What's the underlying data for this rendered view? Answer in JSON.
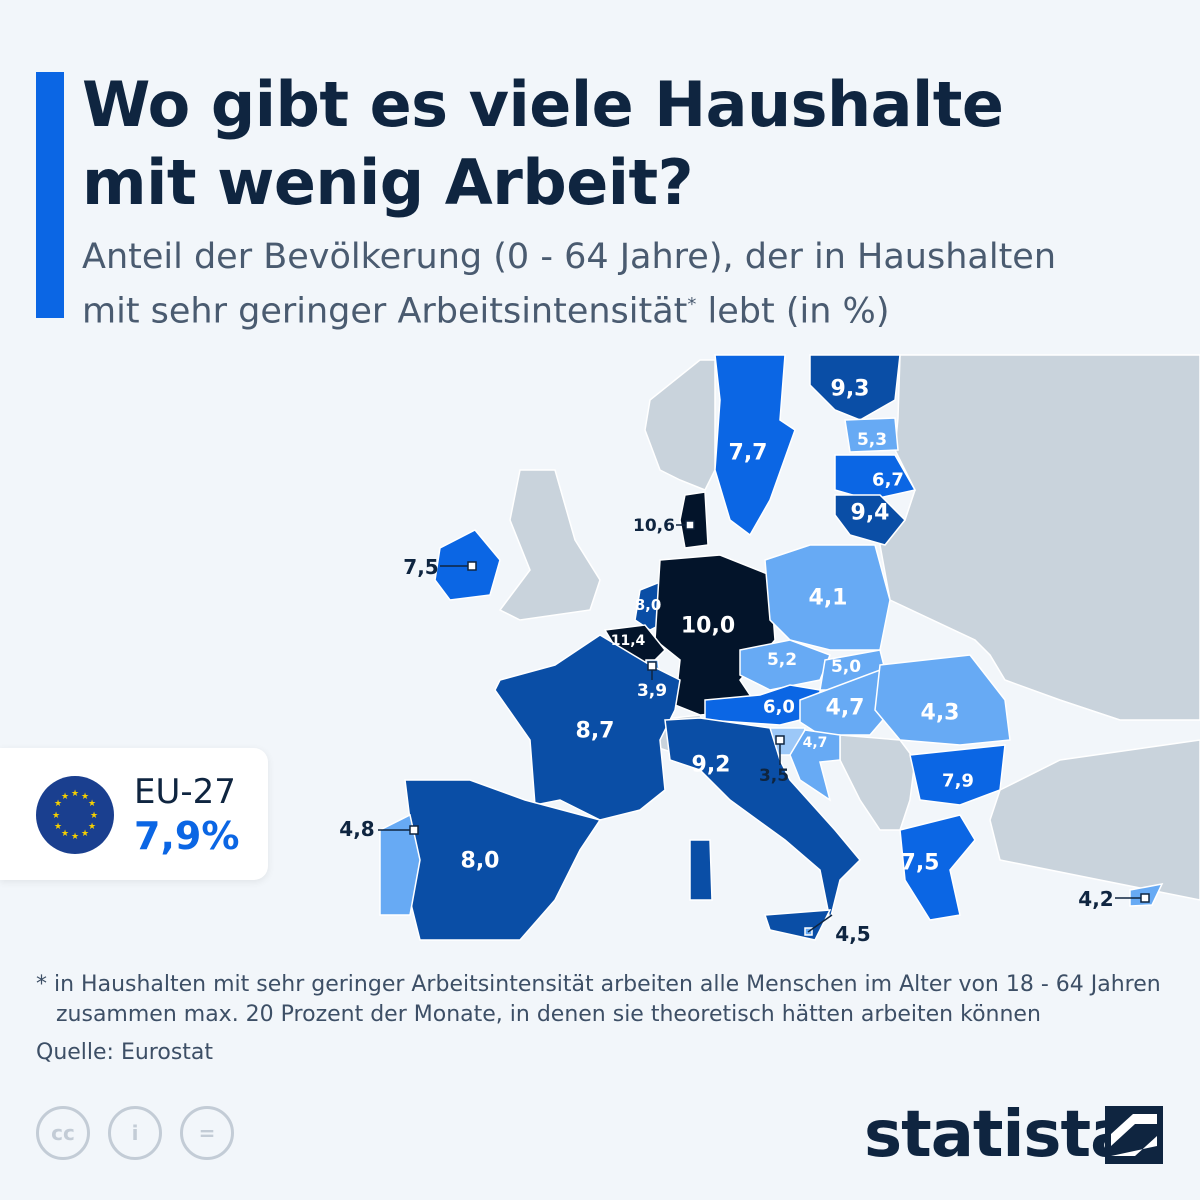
{
  "header": {
    "title_line1": "Wo gibt es viele Haushalte",
    "title_line2": "mit wenig Arbeit?",
    "subtitle_line1": "Anteil der Bevölkerung (0 - 64 Jahre), der in Haushalten",
    "subtitle_line2a": "mit sehr geringer Arbeitsintensität",
    "subtitle_sup": "*",
    "subtitle_line2b": " lebt (in %)"
  },
  "eu_box": {
    "name": "EU-27",
    "value": "7,9%"
  },
  "colors": {
    "darkest": "#03142a",
    "dark": "#0a4ea6",
    "mid": "#0b66e4",
    "light": "#67aaf4",
    "other_land": "#c9d3dc",
    "accent": "#0b66e4"
  },
  "map_data": {
    "type": "choropleth",
    "unit": "%",
    "countries": [
      {
        "name": "Schweden",
        "value": "7,7"
      },
      {
        "name": "Finnland",
        "value": "9,3"
      },
      {
        "name": "Estland",
        "value": "5,3"
      },
      {
        "name": "Lettland",
        "value": "6,7"
      },
      {
        "name": "Litauen",
        "value": "9,4"
      },
      {
        "name": "Dänemark",
        "value": "10,6"
      },
      {
        "name": "Irland",
        "value": "7,5"
      },
      {
        "name": "Niederlande",
        "value": "8,0"
      },
      {
        "name": "Belgien",
        "value": "11,4"
      },
      {
        "name": "Luxemburg",
        "value": "3,9"
      },
      {
        "name": "Deutschland",
        "value": "10,0"
      },
      {
        "name": "Polen",
        "value": "4,1"
      },
      {
        "name": "Tschechien",
        "value": "5,2"
      },
      {
        "name": "Slowakei",
        "value": "5,0"
      },
      {
        "name": "Österreich",
        "value": "6,0"
      },
      {
        "name": "Ungarn",
        "value": "4,7"
      },
      {
        "name": "Rumänien",
        "value": "4,3"
      },
      {
        "name": "Slowenien",
        "value": "3,5"
      },
      {
        "name": "Kroatien",
        "value": "4,7"
      },
      {
        "name": "Bulgarien",
        "value": "7,9"
      },
      {
        "name": "Frankreich",
        "value": "8,7"
      },
      {
        "name": "Italien",
        "value": "9,2"
      },
      {
        "name": "Spanien",
        "value": "8,0"
      },
      {
        "name": "Portugal",
        "value": "4,8"
      },
      {
        "name": "Griechenland",
        "value": "7,5"
      },
      {
        "name": "Malta",
        "value": "4,5"
      },
      {
        "name": "Zypern",
        "value": "4,2"
      }
    ]
  },
  "footer": {
    "note_line1": "* in Haushalten mit sehr geringer Arbeitsintensität arbeiten alle Menschen im Alter von 18 - 64 Jahren",
    "note_line2": "zusammen max. 20 Prozent der Monate, in denen sie theoretisch hätten arbeiten können",
    "source": "Quelle: Eurostat",
    "cc_icons": [
      "cc",
      "i",
      "="
    ],
    "logo": "statista"
  }
}
